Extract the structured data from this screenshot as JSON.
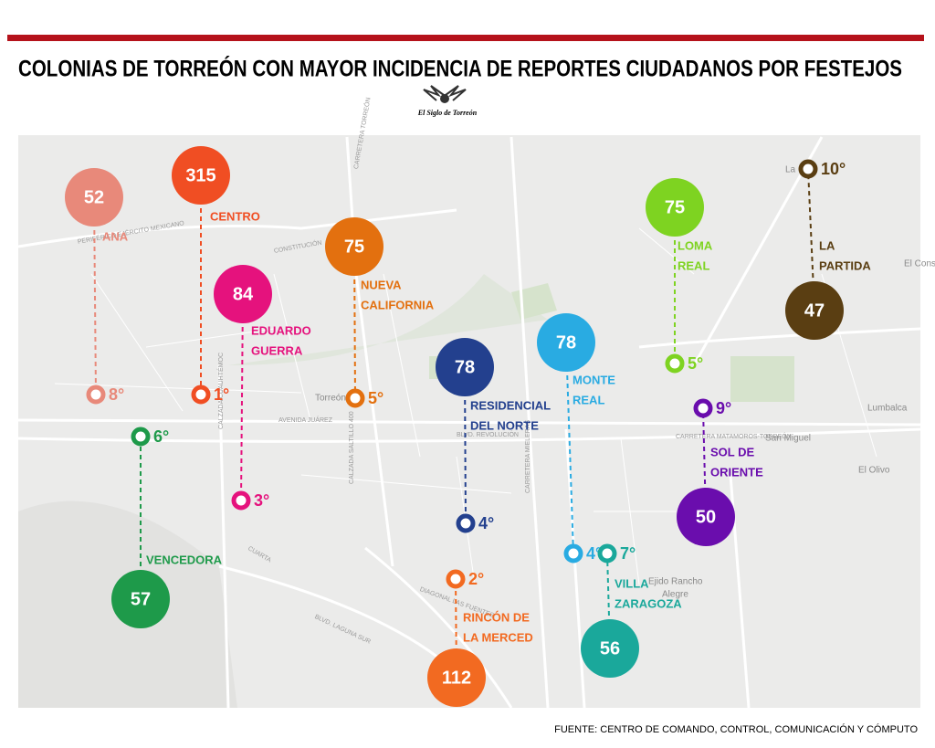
{
  "header": {
    "title": "COLONIAS DE TORREÓN CON MAYOR INCIDENCIA DE REPORTES CIUDADANOS POR FESTEJOS",
    "logo": "El Siglo de Torreón"
  },
  "map": {
    "labels": [
      "Torreón",
      "San Miguel",
      "Lumbalca",
      "El Olivo",
      "Ejido Rancho",
      "Alegre",
      "La",
      "El Cons",
      "AVENIDA JUÁREZ",
      "BLVD. REVOLUCIÓN",
      "CARRETERA MATAMOROS-TORREÓN",
      "CALZADA SALTILLO 400",
      "DIAGONAL LAS FUENTES",
      "BLVD. LAGUNA SUR",
      "CUARTA",
      "CALZADA CUAUHTÉMOC",
      "CARRETERA MIELERAS",
      "PERIFÉRICO EJÉRCITO MEXICANO",
      "CONSTITUCIÓN",
      "CARRETERA TORREÓN"
    ]
  },
  "items": [
    {
      "name": [
        "ANA"
      ],
      "value": 52,
      "rank": "8°",
      "color": "#e8897a"
    },
    {
      "name": [
        "CENTRO"
      ],
      "value": 315,
      "rank": "1°",
      "color": "#f04e23"
    },
    {
      "name": [
        "EDUARDO",
        "GUERRA"
      ],
      "value": 84,
      "rank": "3°",
      "color": "#e5127d"
    },
    {
      "name": [
        "NUEVA",
        "CALIFORNIA"
      ],
      "value": 75,
      "rank": "5°",
      "color": "#e3700f"
    },
    {
      "name": [
        "RESIDENCIAL",
        "DEL NORTE"
      ],
      "value": 78,
      "rank": "4°",
      "color": "#23408e"
    },
    {
      "name": [
        "MONTE",
        "REAL"
      ],
      "value": 78,
      "rank": "4°",
      "color": "#29abe2"
    },
    {
      "name": [
        "LOMA",
        "REAL"
      ],
      "value": 75,
      "rank": "5°",
      "color": "#7ed321"
    },
    {
      "name": [
        "LA",
        "PARTIDA"
      ],
      "value": 47,
      "rank": "10°",
      "color": "#5a3e12"
    },
    {
      "name": [
        "SOL DE",
        "ORIENTE"
      ],
      "value": 50,
      "rank": "9°",
      "color": "#6a0dad"
    },
    {
      "name": [
        "VILLA",
        "ZARAGOZA"
      ],
      "value": 56,
      "rank": "7°",
      "color": "#1aa89b"
    },
    {
      "name": [
        "RINCÓN DE",
        "LA MERCED"
      ],
      "value": 112,
      "rank": "2°",
      "color": "#f26a21"
    },
    {
      "name": [
        "VENCEDORA"
      ],
      "value": 57,
      "rank": "6°",
      "color": "#1e9a4a"
    }
  ],
  "source": "FUENTE:  CENTRO DE COMANDO, CONTROL, COMUNICACIÓN Y CÓMPUTO"
}
